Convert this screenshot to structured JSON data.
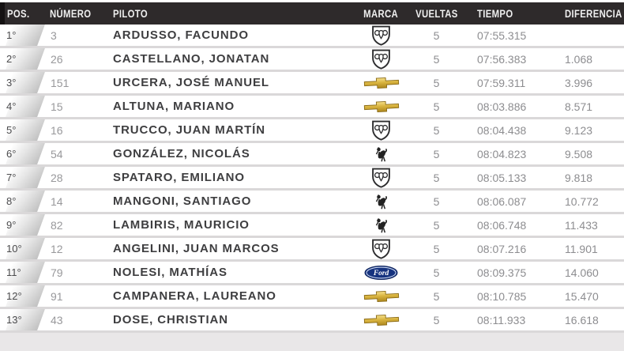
{
  "header": {
    "columns": [
      {
        "key": "pos",
        "label": "POS."
      },
      {
        "key": "numero",
        "label": "NÚMERO"
      },
      {
        "key": "piloto",
        "label": "PILOTO"
      },
      {
        "key": "marca",
        "label": "MARCA"
      },
      {
        "key": "vueltas",
        "label": "VUELTAS"
      },
      {
        "key": "tiempo",
        "label": "TIEMPO"
      },
      {
        "key": "diferencia",
        "label": "DIFERENCIA"
      }
    ]
  },
  "brand_names": {
    "dodge": "Dodge",
    "chevrolet": "Chevrolet",
    "torino": "Torino",
    "ford": "Ford"
  },
  "colors": {
    "header_bg": "#2e2a2b",
    "header_accent": "#141112",
    "row_bg": "#ffffff",
    "row_separator": "#dad8d9",
    "page_bg": "#e9e7e8",
    "chevrolet_gold": "#d9b440",
    "ford_blue": "#16337f",
    "name_text": "#3e3e40",
    "muted_text": "#8d8d90"
  },
  "rows": [
    {
      "pos": "1°",
      "number": "3",
      "driver": "ARDUSSO, FACUNDO",
      "brand": "dodge",
      "laps": "5",
      "time": "07:55.315",
      "gap": ""
    },
    {
      "pos": "2°",
      "number": "26",
      "driver": "CASTELLANO, JONATAN",
      "brand": "dodge",
      "laps": "5",
      "time": "07:56.383",
      "gap": "1.068"
    },
    {
      "pos": "3°",
      "number": "151",
      "driver": "URCERA, JOSÉ MANUEL",
      "brand": "chevrolet",
      "laps": "5",
      "time": "07:59.311",
      "gap": "3.996"
    },
    {
      "pos": "4°",
      "number": "15",
      "driver": "ALTUNA, MARIANO",
      "brand": "chevrolet",
      "laps": "5",
      "time": "08:03.886",
      "gap": "8.571"
    },
    {
      "pos": "5°",
      "number": "16",
      "driver": "TRUCCO, JUAN MARTÍN",
      "brand": "dodge",
      "laps": "5",
      "time": "08:04.438",
      "gap": "9.123"
    },
    {
      "pos": "6°",
      "number": "54",
      "driver": "GONZÁLEZ, NICOLÁS",
      "brand": "torino",
      "laps": "5",
      "time": "08:04.823",
      "gap": "9.508"
    },
    {
      "pos": "7°",
      "number": "28",
      "driver": "SPATARO, EMILIANO",
      "brand": "dodge",
      "laps": "5",
      "time": "08:05.133",
      "gap": "9.818"
    },
    {
      "pos": "8°",
      "number": "14",
      "driver": "MANGONI, SANTIAGO",
      "brand": "torino",
      "laps": "5",
      "time": "08:06.087",
      "gap": "10.772"
    },
    {
      "pos": "9°",
      "number": "82",
      "driver": "LAMBIRIS, MAURICIO",
      "brand": "torino",
      "laps": "5",
      "time": "08:06.748",
      "gap": "11.433"
    },
    {
      "pos": "10°",
      "number": "12",
      "driver": "ANGELINI, JUAN MARCOS",
      "brand": "dodge",
      "laps": "5",
      "time": "08:07.216",
      "gap": "11.901"
    },
    {
      "pos": "11°",
      "number": "79",
      "driver": "NOLESI, MATHÍAS",
      "brand": "ford",
      "laps": "5",
      "time": "08:09.375",
      "gap": "14.060"
    },
    {
      "pos": "12°",
      "number": "91",
      "driver": "CAMPANERA, LAUREANO",
      "brand": "chevrolet",
      "laps": "5",
      "time": "08:10.785",
      "gap": "15.470"
    },
    {
      "pos": "13°",
      "number": "43",
      "driver": "DOSE, CHRISTIAN",
      "brand": "chevrolet",
      "laps": "5",
      "time": "08:11.933",
      "gap": "16.618"
    }
  ]
}
